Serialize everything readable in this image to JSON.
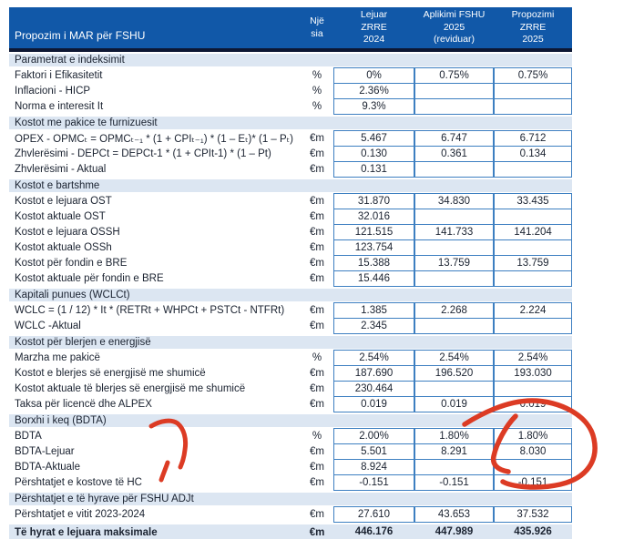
{
  "header": {
    "title": "Propozim i MAR për FSHU",
    "unit_col": "Një\nsia",
    "col_lejuar": "Lejuar\nZRRE\n2024",
    "col_aplikimi": "Aplikimi  FSHU\n2025\n(reviduar)",
    "col_propozimi": "Propozimi\nZRRE\n2025"
  },
  "colors": {
    "header_bg": "#1158a8",
    "section_bg": "#dce6f2",
    "cell_border": "#3d7fc1",
    "header_divider": "#0d1733",
    "text": "#1a2230",
    "annotation_red": "#dc3b24"
  },
  "rows": [
    {
      "type": "section",
      "label": "Parametrat e indeksimit"
    },
    {
      "type": "data",
      "label": "Faktori i Efikasitetit",
      "unit": "%",
      "v1": "0%",
      "v2": "0.75%",
      "v3": "0.75%"
    },
    {
      "type": "data",
      "label": "Inflacioni - HICP",
      "unit": "%",
      "v1": "2.36%",
      "v2": "",
      "v3": ""
    },
    {
      "type": "data",
      "label": "Norma e interesit It",
      "unit": "%",
      "v1": "9.3%",
      "v2": "",
      "v3": ""
    },
    {
      "type": "section",
      "label": "Kostot me pakice te furnizuesit"
    },
    {
      "type": "data",
      "label": "OPEX - OPMCₜ = OPMCₜ₋₁ * (1 + CPIₜ₋₁) * (1 – Eₜ)* (1 – Pₜ)",
      "unit": "€m",
      "v1": "5.467",
      "v2": "6.747",
      "v3": "6.712"
    },
    {
      "type": "data",
      "label": "Zhvlerësimi - DEPCt = DEPCt-1 * (1 + CPIt-1) * (1 – Pt)",
      "unit": "€m",
      "v1": "0.130",
      "v2": "0.361",
      "v3": "0.134"
    },
    {
      "type": "data",
      "label": "Zhvlerësimi - Aktual",
      "unit": "€m",
      "v1": "0.131",
      "v2": "",
      "v3": ""
    },
    {
      "type": "section",
      "label": "Kostot e bartshme"
    },
    {
      "type": "data",
      "label": "Kostot e lejuara OST",
      "unit": "€m",
      "v1": "31.870",
      "v2": "34.830",
      "v3": "33.435"
    },
    {
      "type": "data",
      "label": "Kostot aktuale OST",
      "unit": "€m",
      "v1": "32.016",
      "v2": "",
      "v3": ""
    },
    {
      "type": "data",
      "label": "Kostot e lejuara OSSH",
      "unit": "€m",
      "v1": "121.515",
      "v2": "141.733",
      "v3": "141.204"
    },
    {
      "type": "data",
      "label": "Kostot aktuale OSSh",
      "unit": "€m",
      "v1": "123.754",
      "v2": "",
      "v3": ""
    },
    {
      "type": "data",
      "label": "Kostot për fondin e BRE",
      "unit": "€m",
      "v1": "15.388",
      "v2": "13.759",
      "v3": "13.759"
    },
    {
      "type": "data",
      "label": "Kostot aktuale për fondin e BRE",
      "unit": "€m",
      "v1": "15.446",
      "v2": "",
      "v3": ""
    },
    {
      "type": "section",
      "label": "Kapitali punues (WCLCt)"
    },
    {
      "type": "data",
      "label": "WCLC = (1 / 12) * It * (RETRt + WHPCt + PSTCt - NTFRt)",
      "unit": "€m",
      "v1": "1.385",
      "v2": "2.268",
      "v3": "2.224"
    },
    {
      "type": "data",
      "label": "WCLC -Aktual",
      "unit": "€m",
      "v1": "2.345",
      "v2": "",
      "v3": ""
    },
    {
      "type": "section",
      "label": "Kostot për blerjen e energjisë"
    },
    {
      "type": "data",
      "label": "Marzha me pakicë",
      "unit": "%",
      "v1": "2.54%",
      "v2": "2.54%",
      "v3": "2.54%"
    },
    {
      "type": "data",
      "label": "Kostot e blerjes së energjisë me shumicë",
      "unit": "€m",
      "v1": "187.690",
      "v2": "196.520",
      "v3": "193.030"
    },
    {
      "type": "data",
      "label": "Kostot aktuale të blerjes së energjisë me shumicë",
      "unit": "€m",
      "v1": "230.464",
      "v2": "",
      "v3": ""
    },
    {
      "type": "data",
      "label": "Taksa për licencë dhe ALPEX",
      "unit": "€m",
      "v1": "0.019",
      "v2": "0.019",
      "v3": "0.019"
    },
    {
      "type": "section",
      "label": "Borxhi i keq (BDTA)"
    },
    {
      "type": "data",
      "label": "BDTA",
      "unit": "%",
      "v1": "2.00%",
      "v2": "1.80%",
      "v3": "1.80%"
    },
    {
      "type": "data",
      "label": "BDTA-Lejuar",
      "unit": "€m",
      "v1": "5.501",
      "v2": "8.291",
      "v3": "8.030"
    },
    {
      "type": "data",
      "label": "BDTA-Aktuale",
      "unit": "€m",
      "v1": "8.924",
      "v2": "",
      "v3": ""
    },
    {
      "type": "data",
      "label": "Përshtatjet e kostove të HC",
      "unit": "€m",
      "v1": "-0.151",
      "v2": "-0.151",
      "v3": "-0.151"
    },
    {
      "type": "section",
      "label": "Përshtatjet e  të hyrave për FSHU  ADJt"
    },
    {
      "type": "data",
      "label": "Përshtatjet e vitit 2023-2024",
      "unit": "€m",
      "v1": "27.610",
      "v2": "43.653",
      "v3": "37.532"
    },
    {
      "type": "total",
      "label": "Të hyrat e lejuara maksimale",
      "unit": "€m",
      "v1": "446.176",
      "v2": "447.989",
      "v3": "435.926"
    }
  ],
  "annotation": {
    "description": "hand-drawn red marker circle around Propozimi ZRRE 2025 values in BDTA section, plus red check mark at left",
    "color": "#dc3b24"
  }
}
